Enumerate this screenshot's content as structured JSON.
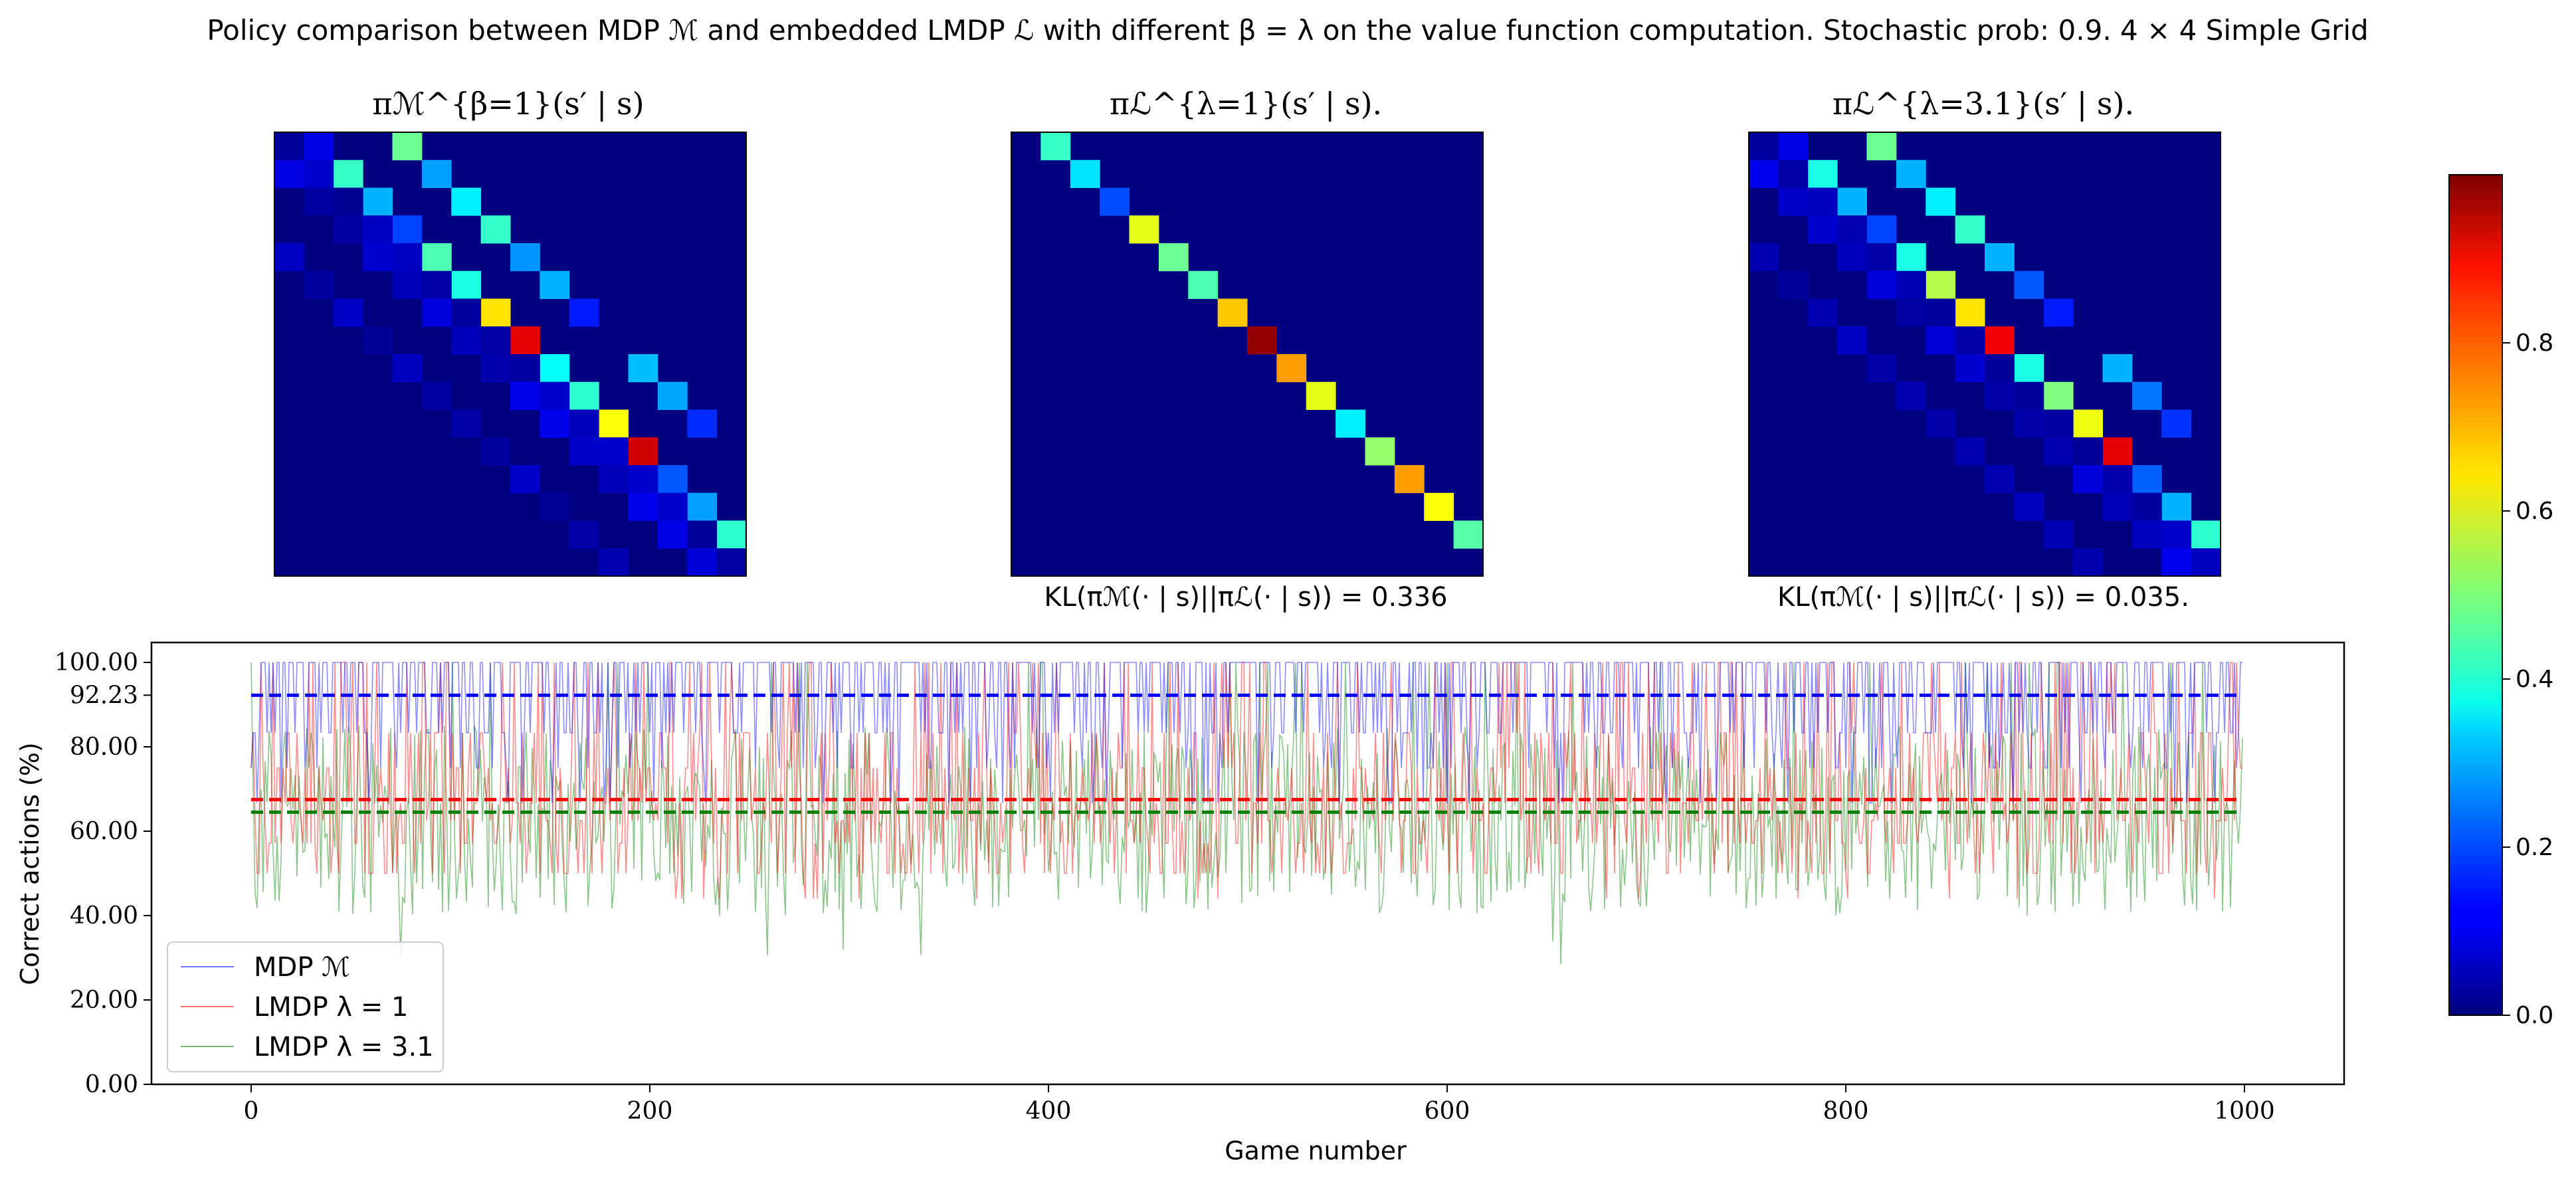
{
  "title": "Policy comparison between MDP ℳ and embedded LMDP ℒ with different β = λ on the value function computation. Stochastic prob: 0.9. 4 × 4 Simple Grid",
  "heatmaps": [
    {
      "label": "πℳ^{β=1}(s′ | s)",
      "kl": ""
    },
    {
      "label": "πℒ^{λ=1}(s′ | s).",
      "kl": "KL(πℳ(· | s)||πℒ(· | s)) = 0.336"
    },
    {
      "label": "πℒ^{λ=3.1}(s′ | s).",
      "kl": "KL(πℳ(· | s)||πℒ(· | s)) = 0.035."
    }
  ],
  "colorbar": {
    "colormap": "jet",
    "min": 0.0,
    "max": 1.0,
    "ticks": [
      "0.0",
      "0.2",
      "0.4",
      "0.6",
      "0.8"
    ]
  },
  "chart_data": {
    "type": "line",
    "xlabel": "Game number",
    "ylabel": "Correct actions (%)",
    "xlim": [
      -50,
      1050
    ],
    "ylim": [
      0,
      100
    ],
    "xticks": [
      "0",
      "200",
      "400",
      "600",
      "800",
      "1000"
    ],
    "yticks": [
      "0.00",
      "20.00",
      "40.00",
      "60.00",
      "80.00",
      "92.23",
      "100.00"
    ],
    "series": [
      {
        "name": "MDP ℳ",
        "color": "#0000ff",
        "mean": 92.23,
        "low": 50,
        "high": 100
      },
      {
        "name": "LMDP λ = 1",
        "color": "#ff0000",
        "mean": 67.5,
        "low": 50,
        "high": 100
      },
      {
        "name": "LMDP λ = 3.1",
        "color": "#008000",
        "mean": 64.5,
        "low": 28,
        "high": 100
      }
    ],
    "games": 1000,
    "legend": "lower-left"
  }
}
